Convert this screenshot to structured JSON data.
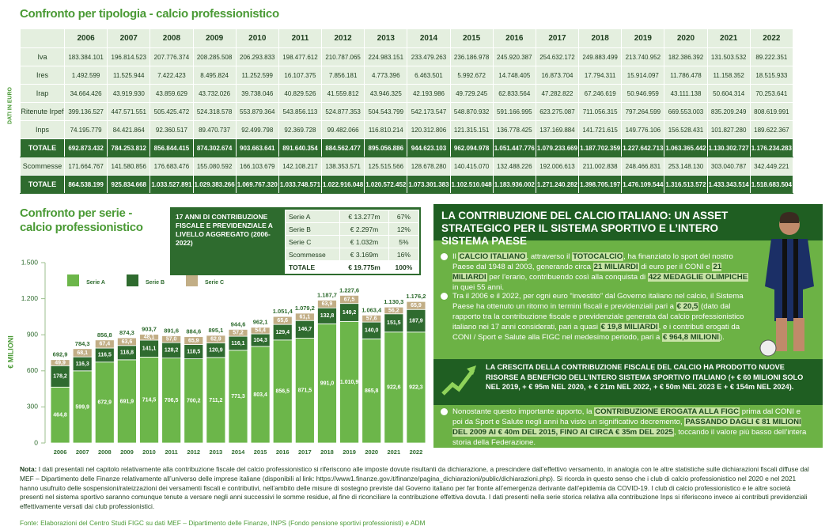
{
  "table": {
    "title": "Confronto per tipologia - calcio professionistico",
    "side_label": "DATI IN EURO",
    "columns": [
      "2006",
      "2007",
      "2008",
      "2009",
      "2010",
      "2011",
      "2012",
      "2013",
      "2014",
      "2015",
      "2016",
      "2017",
      "2018",
      "2019",
      "2020",
      "2021",
      "2022"
    ],
    "rows": [
      {
        "label": "Iva",
        "values": [
          "183.384.101",
          "196.814.523",
          "207.776.374",
          "208.285.508",
          "206.293.833",
          "198.477.612",
          "210.787.065",
          "224.983.151",
          "233.479.263",
          "236.186.978",
          "245.920.387",
          "254.632.172",
          "249.883.499",
          "213.740.952",
          "182.386.392",
          "131.503.532",
          "89.222.351"
        ]
      },
      {
        "label": "Ires",
        "values": [
          "1.492.599",
          "11.525.944",
          "7.422.423",
          "8.495.824",
          "11.252.599",
          "16.107.375",
          "7.856.181",
          "4.773.396",
          "6.463.501",
          "5.992.672",
          "14.748.405",
          "16.873.704",
          "17.794.311",
          "15.914.097",
          "11.786.478",
          "11.158.352",
          "18.515.933"
        ]
      },
      {
        "label": "Irap",
        "values": [
          "34.664.426",
          "43.919.930",
          "43.859.629",
          "43.732.026",
          "39.738.046",
          "40.829.526",
          "41.559.812",
          "43.946.325",
          "42.193.986",
          "49.729.245",
          "62.833.564",
          "47.282.822",
          "67.246.619",
          "50.946.959",
          "43.111.138",
          "50.604.314",
          "70.253.641"
        ]
      },
      {
        "label": "Ritenute Irpef",
        "values": [
          "399.136.527",
          "447.571.551",
          "505.425.472",
          "524.318.578",
          "553.879.364",
          "543.856.113",
          "524.877.353",
          "504.543.799",
          "542.173.547",
          "548.870.932",
          "591.166.995",
          "623.275.087",
          "711.056.315",
          "797.264.599",
          "669.553.003",
          "835.209.249",
          "808.619.991"
        ]
      },
      {
        "label": "Inps",
        "values": [
          "74.195.779",
          "84.421.864",
          "92.360.517",
          "89.470.737",
          "92.499.798",
          "92.369.728",
          "99.482.066",
          "116.810.214",
          "120.312.806",
          "121.315.151",
          "136.778.425",
          "137.169.884",
          "141.721.615",
          "149.776.106",
          "156.528.431",
          "101.827.280",
          "189.622.367"
        ]
      },
      {
        "label": "TOTALE",
        "emphasis": true,
        "values": [
          "692.873.432",
          "784.253.812",
          "856.844.415",
          "874.302.674",
          "903.663.641",
          "891.640.354",
          "884.562.477",
          "895.056.886",
          "944.623.103",
          "962.094.978",
          "1.051.447.776",
          "1.079.233.669",
          "1.187.702.359",
          "1.227.642.713",
          "1.063.365.442",
          "1.130.302.727",
          "1.176.234.283"
        ]
      },
      {
        "label": "Scommesse",
        "values": [
          "171.664.767",
          "141.580.856",
          "176.683.476",
          "155.080.592",
          "166.103.679",
          "142.108.217",
          "138.353.571",
          "125.515.566",
          "128.678.280",
          "140.415.070",
          "132.488.226",
          "192.006.613",
          "211.002.838",
          "248.466.831",
          "253.148.130",
          "303.040.787",
          "342.449.221"
        ]
      },
      {
        "label": "TOTALE",
        "emphasis": true,
        "values": [
          "864.538.199",
          "925.834.668",
          "1.033.527.891",
          "1.029.383.266",
          "1.069.767.320",
          "1.033.748.571",
          "1.022.916.048",
          "1.020.572.452",
          "1.073.301.383",
          "1.102.510.048",
          "1.183.936.002",
          "1.271.240.282",
          "1.398.705.197",
          "1.476.109.544",
          "1.316.513.572",
          "1.433.343.514",
          "1.518.683.504"
        ]
      }
    ]
  },
  "chart_data": {
    "type": "bar",
    "stacked": true,
    "title": "Confronto per serie - calcio professionistico",
    "y_label": "€ MILIONI",
    "categories": [
      "2006",
      "2007",
      "2008",
      "2009",
      "2010",
      "2011",
      "2012",
      "2013",
      "2014",
      "2015",
      "2016",
      "2017",
      "2018",
      "2019",
      "2020",
      "2021",
      "2022"
    ],
    "series": [
      {
        "name": "Serie A",
        "color": "#6cb64a",
        "values": [
          464.8,
          599.9,
          672.9,
          691.9,
          714.5,
          706.5,
          700.2,
          711.2,
          771.3,
          803.4,
          856.5,
          871.5,
          991.0,
          1010.9,
          865.8,
          922.6,
          922.3
        ],
        "value_labels": [
          "464,8",
          "599,9",
          "672,9",
          "691,9",
          "714,5",
          "706,5",
          "700,2",
          "711,2",
          "771,3",
          "803,4",
          "856,5",
          "871,5",
          "991,0",
          "1.010,9",
          "865,8",
          "922,6",
          "922,3"
        ]
      },
      {
        "name": "Serie B",
        "color": "#2f6b2f",
        "values": [
          178.2,
          116.3,
          116.5,
          118.8,
          141.1,
          128.2,
          118.5,
          120.9,
          116.1,
          104.3,
          129.4,
          146.7,
          132.8,
          149.2,
          140.0,
          151.5,
          187.9
        ],
        "value_labels": [
          "178,2",
          "116,3",
          "116,5",
          "118,8",
          "141,1",
          "128,2",
          "118,5",
          "120,9",
          "116,1",
          "104,3",
          "129,4",
          "146,7",
          "132,8",
          "149,2",
          "140,0",
          "151,5",
          "187,9"
        ]
      },
      {
        "name": "Serie C",
        "color": "#c2ae86",
        "values": [
          49.9,
          68.1,
          67.4,
          63.6,
          48.1,
          57.0,
          65.9,
          62.9,
          57.2,
          54.4,
          65.6,
          61.1,
          63.9,
          67.5,
          57.6,
          56.2,
          65.9
        ],
        "value_labels": [
          "49,9",
          "68,1",
          "67,4",
          "63,6",
          "48,1",
          "57,0",
          "65,9",
          "62,9",
          "57,2",
          "54,4",
          "65,6",
          "61,1",
          "63,9",
          "67,5",
          "57,6",
          "56,2",
          "65,9"
        ]
      }
    ],
    "totals": [
      692.9,
      784.3,
      856.8,
      874.3,
      903.7,
      891.6,
      884.6,
      895.1,
      944.6,
      962.1,
      1051.4,
      1079.2,
      1187.7,
      1227.6,
      1063.4,
      1130.3,
      1176.2
    ],
    "total_labels": [
      "692,9",
      "784,3",
      "856,8",
      "874,3",
      "903,7",
      "891,6",
      "884,6",
      "895,1",
      "944,6",
      "962,1",
      "1.051,4",
      "1.079,2",
      "1.187,7",
      "1.227,6",
      "1.063,4",
      "1.130,3",
      "1.176,2"
    ],
    "ylim": [
      0,
      1500
    ],
    "yticks": [
      0,
      300,
      600,
      900,
      {
        "value": 1200,
        "label": "1.200"
      },
      {
        "value": 1500,
        "label": "1.500"
      }
    ]
  },
  "inset": {
    "title": "17 ANNI DI CONTRIBUZIONE FISCALE E PREVIDENZIALE A LIVELLO AGGREGATO (2006-2022)",
    "rows": [
      [
        "Serie A",
        "€ 13.277m",
        "67%"
      ],
      [
        "Serie B",
        "€ 2.297m",
        "12%"
      ],
      [
        "Serie C",
        "€ 1.032m",
        "5%"
      ],
      [
        "Scommesse",
        "€ 3.169m",
        "16%"
      ],
      [
        "TOTALE",
        "€ 19.775m",
        "100%"
      ]
    ]
  },
  "panel": {
    "title": "LA CONTRIBUZIONE DEL CALCIO ITALIANO: UN ASSET STRATEGICO PER IL SISTEMA SPORTIVO E L’INTERO SISTEMA PAESE",
    "paragraphs": [
      {
        "parts": [
          {
            "text": "Il "
          },
          {
            "text": "CALCIO ITALIANO",
            "highlight": true
          },
          {
            "text": ", attraverso il "
          },
          {
            "text": "TOTOCALCIO",
            "highlight": true
          },
          {
            "text": ", ha finanziato lo sport del nostro Paese dal 1948 al 2003, generando circa "
          },
          {
            "text": "21 MILIARDI",
            "highlight": true
          },
          {
            "text": " di euro per il CONI e "
          },
          {
            "text": "21 MILIARDI",
            "highlight": true
          },
          {
            "text": " per l’erario, contribuendo così alla conquista di "
          },
          {
            "text": "422 MEDAGLIE OLIMPICHE",
            "highlight": true
          },
          {
            "text": " in quei 55 anni."
          }
        ]
      },
      {
        "parts": [
          {
            "text": "Tra il 2006 e il 2022, per ogni euro “investito” dal Governo italiano nel calcio, il Sistema Paese ha ottenuto un ritorno in termini fiscali e previdenziali pari a "
          },
          {
            "text": "€ 20,5",
            "highlight": true
          },
          {
            "text": " (dato dal rapporto tra la contribuzione fiscale e previdenziale generata dal calcio professionistico italiano nei 17 anni considerati, pari a quasi "
          },
          {
            "text": "€ 19,8 MILIARDI",
            "highlight": true
          },
          {
            "text": ", e i contributi erogati da CONI / Sport e Salute alla FIGC nel medesimo periodo, pari a "
          },
          {
            "text": "€ 964,8 MILIONI",
            "highlight": true
          },
          {
            "text": ")."
          }
        ]
      },
      {
        "parts": [
          {
            "text": "Nonostante questo importante apporto, la "
          },
          {
            "text": "CONTRIBUZIONE EROGATA ALLA FIGC",
            "highlight": true
          },
          {
            "text": " prima dal CONI e poi da Sport e Salute negli anni ha visto un significativo decremento, "
          },
          {
            "text": "PASSANDO DAGLI € 81 MILIONI DEL 2009 AI € 40m DEL 2015, FINO AI CIRCA € 35m DEL 2025",
            "highlight": true
          },
          {
            "text": ", toccando il valore più basso dell’intera storia della Federazione."
          }
        ]
      }
    ],
    "box": "LA CRESCITA DELLA CONTRIBUZIONE FISCALE DEL CALCIO HA PRODOTTO NUOVE RISORSE A BENEFICIO DELL’INTERO SISTEMA SPORTIVO ITALIANO (+ € 60 MILIONI SOLO NEL 2019, + € 95m NEL 2020, + € 21m NEL 2022, + € 50m NEL 2023 E + € 154m NEL 2024)."
  },
  "note": {
    "label": "Nota:",
    "text": "I dati presentati nel capitolo relativamente alla contribuzione fiscale del calcio professionistico si riferiscono alle imposte dovute risultanti da dichiarazione, a prescindere dall’effettivo versamento, in analogia con le altre statistiche sulle dichiarazioni fiscali diffuse dal MEF – Dipartimento delle Finanze relativamente all’universo delle imprese italiane (disponibili al link: https://www1.finanze.gov.it/finanze/pagina_dichiarazioni/public/dichiarazioni.php). Si ricorda in questo senso che i club di calcio professionistico nel 2020 e nel 2021 hanno usufruito delle sospensioni/rateizzazioni dei versamenti fiscali e contributivi, nell’ambito delle misure di sostegno previste dal Governo italiano per far fronte all’emergenza derivante dall’epidemia da COVID-19. I club di calcio professionistico e le altre società presenti nel sistema sportivo saranno comunque tenute a versare negli anni successivi le somme residue, al fine di riconciliare la contribuzione effettiva dovuta. I dati presenti nella serie storica relativa alla contribuzione Inps si riferiscono invece ai contributi previdenziali effettivamente versati dai club professionistici."
  },
  "source": "Fonte: Elaborazioni del Centro Studi FIGC su dati MEF – Dipartimento delle Finanze, INPS (Fondo pensione sportivi professionisti) e ADM"
}
